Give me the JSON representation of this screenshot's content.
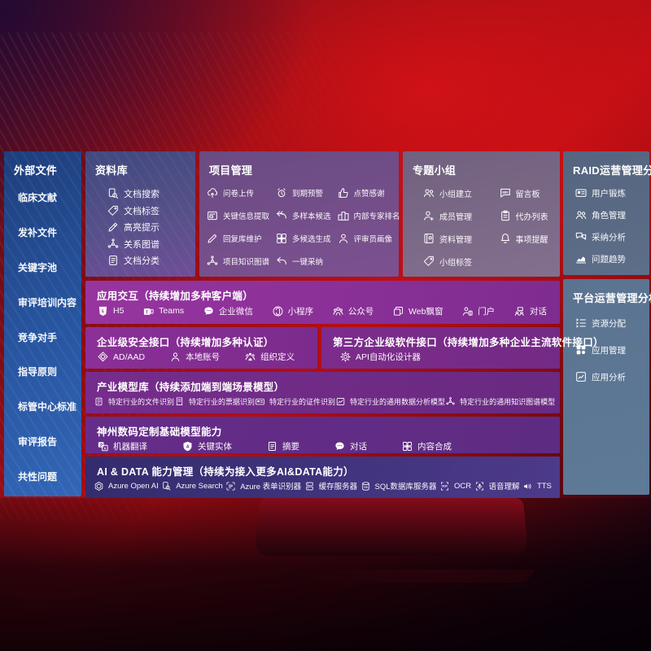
{
  "colors": {
    "background_red": "#b30d14",
    "panel_blue": "#27549e",
    "library_purple": "#565089",
    "project_mauve": "#7c5190",
    "topic_gray": "#83708f",
    "slate_blue": "#5d6e89",
    "platform_slate": "#5d7a97",
    "band_magenta": "#8b3098",
    "band_purple": "#742a85",
    "band_indigo": "#3a2f75"
  },
  "left_panel": {
    "title": "外部文件",
    "items": [
      {
        "label": "临床文献"
      },
      {
        "label": "发补文件"
      },
      {
        "label": "关键字池"
      },
      {
        "label": "审评培训内容"
      },
      {
        "label": "竞争对手"
      },
      {
        "label": "指导原则"
      },
      {
        "label": "标管中心标准"
      },
      {
        "label": "审评报告"
      },
      {
        "label": "共性问题"
      }
    ]
  },
  "library": {
    "title": "资料库",
    "items": [
      {
        "icon": "doc-search",
        "label": "文档搜索"
      },
      {
        "icon": "tag",
        "label": "文档标签"
      },
      {
        "icon": "highlight-pen",
        "label": "高亮提示"
      },
      {
        "icon": "graph",
        "label": "关系图谱"
      },
      {
        "icon": "doc-category",
        "label": "文档分类"
      }
    ]
  },
  "project": {
    "title": "项目管理",
    "items": [
      {
        "icon": "cloud-upload",
        "label": "问卷上传"
      },
      {
        "icon": "alarm",
        "label": "到期预警"
      },
      {
        "icon": "thumb-up",
        "label": "点赞感谢"
      },
      {
        "icon": "doc-extract",
        "label": "关键信息提取"
      },
      {
        "icon": "arrows-multi",
        "label": "多样本候选"
      },
      {
        "icon": "podium",
        "label": "内部专家排名"
      },
      {
        "icon": "pen",
        "label": "回复库维护"
      },
      {
        "icon": "puzzle",
        "label": "多候选生成"
      },
      {
        "icon": "person",
        "label": "评审员画像"
      },
      {
        "icon": "graph",
        "label": "项目知识图谱"
      },
      {
        "icon": "reply",
        "label": "一键采纳"
      }
    ]
  },
  "topic_group": {
    "title": "专题小组",
    "items": [
      {
        "icon": "people",
        "label": "小组建立"
      },
      {
        "icon": "bbs",
        "label": "留言板"
      },
      {
        "icon": "member-add",
        "label": "成员管理"
      },
      {
        "icon": "clipboard",
        "label": "代办列表"
      },
      {
        "icon": "album",
        "label": "资料管理"
      },
      {
        "icon": "bell",
        "label": "事项提醒"
      },
      {
        "icon": "tag",
        "label": "小组标签"
      }
    ]
  },
  "raid": {
    "title": "RAID运营管理分析",
    "items": [
      {
        "icon": "id-card",
        "label": "用户锻炼"
      },
      {
        "icon": "people",
        "label": "角色管理"
      },
      {
        "icon": "chat-qa",
        "label": "采纳分析"
      },
      {
        "icon": "trend",
        "label": "问题趋势"
      }
    ]
  },
  "platform": {
    "title": "平台运营管理分析",
    "items": [
      {
        "icon": "list-settings",
        "label": "资源分配"
      },
      {
        "icon": "apps",
        "label": "应用管理"
      },
      {
        "icon": "app-chart",
        "label": "应用分析"
      }
    ]
  },
  "bands": {
    "interaction": {
      "title": "应用交互（持续增加多种客户端）",
      "items": [
        {
          "icon": "html5",
          "label": "H5"
        },
        {
          "icon": "teams",
          "label": "Teams"
        },
        {
          "icon": "wechat-work",
          "label": "企业微信"
        },
        {
          "icon": "mini-program",
          "label": "小程序"
        },
        {
          "icon": "official-account",
          "label": "公众号"
        },
        {
          "icon": "web-window",
          "label": "Web飘窗"
        },
        {
          "icon": "portal",
          "label": "门户"
        },
        {
          "icon": "dialog",
          "label": "对话"
        }
      ]
    },
    "security": {
      "title": "企业级安全接口（持续增加多种认证）",
      "items": [
        {
          "icon": "ad-shield",
          "label": "AD/AAD"
        },
        {
          "icon": "person",
          "label": "本地账号"
        },
        {
          "icon": "org",
          "label": "组织定义"
        }
      ]
    },
    "third_party": {
      "title": "第三方企业级软件接口（持续增加多种企业主流软件接口）",
      "items": [
        {
          "icon": "api-gear",
          "label": "API自动化设计器"
        }
      ]
    },
    "industry": {
      "title": "产业模型库（持续添加端到端场景模型）",
      "items": [
        {
          "icon": "doc",
          "label": "特定行业的文件识别"
        },
        {
          "icon": "receipt",
          "label": "特定行业的票据识别"
        },
        {
          "icon": "id-card",
          "label": "特定行业的证件识别"
        },
        {
          "icon": "chart-image",
          "label": "特定行业的通用数据分析模型"
        },
        {
          "icon": "graph",
          "label": "特定行业的通用知识图谱模型"
        }
      ]
    },
    "base_models": {
      "title": "神州数码定制基础模型能力",
      "items": [
        {
          "icon": "translate",
          "label": "机器翻译"
        },
        {
          "icon": "entity",
          "label": "关键实体"
        },
        {
          "icon": "summary",
          "label": "摘要"
        },
        {
          "icon": "wechat-work",
          "label": "对话"
        },
        {
          "icon": "puzzle",
          "label": "内容合成"
        }
      ]
    },
    "ai_data": {
      "title": "AI & DATA 能力管理（持续为接入更多AI&DATA能力）",
      "items": [
        {
          "icon": "openai",
          "label": "Azure Open AI"
        },
        {
          "icon": "azure-search",
          "label": "Azure Search"
        },
        {
          "icon": "form-recognizer",
          "label": "Azure 表单识别器"
        },
        {
          "icon": "cache-server",
          "label": "缓存服务器"
        },
        {
          "icon": "sql-db",
          "label": "SQL数据库服务器"
        },
        {
          "icon": "ocr",
          "label": "OCR"
        },
        {
          "icon": "speech",
          "label": "语音理解"
        },
        {
          "icon": "tts",
          "label": "TTS"
        }
      ]
    }
  }
}
